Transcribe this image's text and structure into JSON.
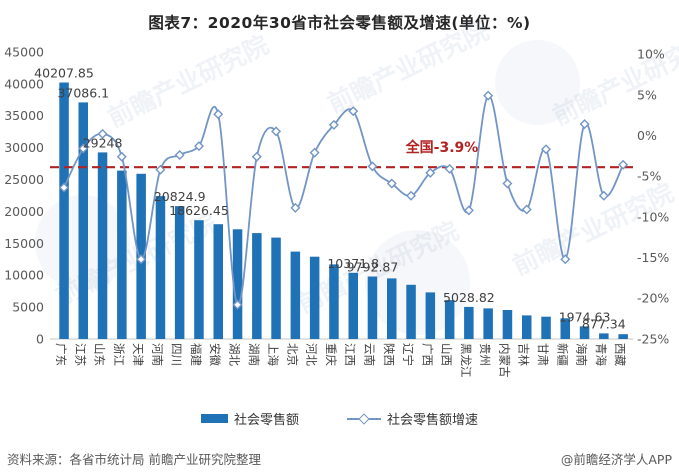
{
  "title": "图表7：2020年30省市社会零售额及增速(单位：%)",
  "chart_data": {
    "type": "bar",
    "subtype": "bar+line combo, dual axis",
    "categories": [
      "广东",
      "江苏",
      "山东",
      "浙江",
      "天津",
      "河南",
      "四川",
      "福建",
      "安徽",
      "湖北",
      "湖南",
      "上海",
      "北京",
      "河北",
      "重庆",
      "江西",
      "云南",
      "陕西",
      "辽宁",
      "广西",
      "山西",
      "黑龙江",
      "贵州",
      "内蒙古",
      "吉林",
      "甘肃",
      "新疆",
      "海南",
      "青海",
      "西藏"
    ],
    "series": [
      {
        "name": "社会零售额",
        "type": "bar",
        "axis": "left",
        "values": [
          40207.85,
          37086.1,
          29248,
          26400,
          25900,
          22400,
          20824.9,
          18626.45,
          18000,
          17200,
          16600,
          15900,
          13700,
          12900,
          11700,
          10371.8,
          9792.87,
          9500,
          8500,
          7300,
          6100,
          5028.82,
          4800,
          4550,
          3700,
          3500,
          3250,
          1974.63,
          877.34,
          750
        ]
      },
      {
        "name": "社会零售额增速",
        "type": "line",
        "axis": "right",
        "values": [
          -6.4,
          -1.6,
          0.2,
          -2.6,
          -15.2,
          -4.2,
          -2.4,
          -1.3,
          2.6,
          -20.8,
          -2.6,
          0.5,
          -8.9,
          -2.1,
          1.3,
          3.0,
          -3.8,
          -5.9,
          -7.4,
          -4.6,
          -4.1,
          -9.2,
          4.9,
          -5.9,
          -9.1,
          -1.7,
          -15.2,
          1.4,
          -7.4,
          -3.6
        ]
      }
    ],
    "value_labels": [
      {
        "index": 0,
        "text": "40207.85"
      },
      {
        "index": 1,
        "text": "37086.1"
      },
      {
        "index": 2,
        "text": "29248"
      },
      {
        "index": 6,
        "text": "20824.9"
      },
      {
        "index": 7,
        "text": "18626.45"
      },
      {
        "index": 15,
        "text": "10371.8"
      },
      {
        "index": 16,
        "text": "9792.87"
      },
      {
        "index": 21,
        "text": "5028.82"
      },
      {
        "index": 27,
        "text": "1974.63"
      },
      {
        "index": 28,
        "text": "877.34"
      }
    ],
    "left_axis": {
      "min": 0,
      "max": 45000,
      "step": 5000,
      "ticks": [
        "45000",
        "40000",
        "35000",
        "30000",
        "25000",
        "20000",
        "15000",
        "10000",
        "5000",
        "0"
      ]
    },
    "right_axis": {
      "min": -25,
      "max": 10,
      "step": 5,
      "ticks": [
        "10%",
        "5%",
        "0%",
        "-5%",
        "-10%",
        "-15%",
        "-20%",
        "-25%"
      ]
    },
    "reference_line": {
      "label": "全国-3.9%",
      "value": -3.9
    },
    "grid": "off",
    "legend_position": "bottom"
  },
  "legend": {
    "bar_label": "社会零售额",
    "line_label": "社会零售额增速"
  },
  "footer": {
    "source": "资料来源：各省市统计局 前瞻产业研究院整理",
    "credit": "@前瞻经济学人APP"
  },
  "watermark": {
    "text": "前瞻产业研究院"
  },
  "colors": {
    "bar": "#1F72B5",
    "line": "#7295C5",
    "marker_fill": "#FFFFFF",
    "reference": "#B22222",
    "axis_text": "#595959",
    "label_text": "#3F3F3F",
    "title_text": "#262626"
  }
}
